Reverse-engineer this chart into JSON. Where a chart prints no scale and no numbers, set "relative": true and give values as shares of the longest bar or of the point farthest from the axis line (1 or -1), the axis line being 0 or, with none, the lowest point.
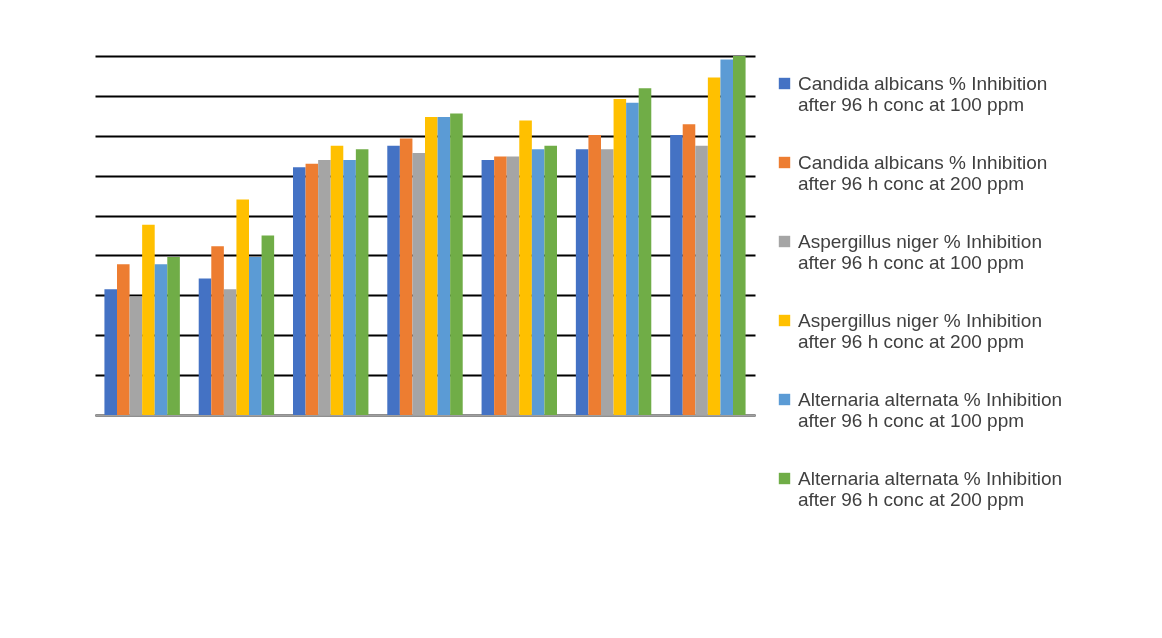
{
  "chart_data": {
    "type": "bar",
    "relative": true,
    "grid": "y",
    "legend": "right",
    "categories": [
      null,
      null,
      null,
      null,
      null,
      null,
      null
    ],
    "series": [
      {
        "name": "Candida albicans % Inhibition after 96 h conc at 100 ppm",
        "color": "#4472c4",
        "values": [
          0.35,
          0.38,
          0.69,
          0.75,
          0.71,
          0.74,
          0.78
        ]
      },
      {
        "name": "Candida albicans % Inhibition after 96 h conc at 200 ppm",
        "color": "#ed7d31",
        "values": [
          0.42,
          0.47,
          0.7,
          0.77,
          0.72,
          0.78,
          0.81
        ]
      },
      {
        "name": "Aspergillus niger % Inhibition after 96 h conc at 100 ppm",
        "color": "#a5a5a5",
        "values": [
          0.33,
          0.35,
          0.71,
          0.73,
          0.72,
          0.74,
          0.75
        ]
      },
      {
        "name": "Aspergillus niger % Inhibition after 96 h conc at 200 ppm",
        "color": "#ffc000",
        "values": [
          0.53,
          0.6,
          0.75,
          0.83,
          0.82,
          0.88,
          0.94
        ]
      },
      {
        "name": "Alternaria alternata % Inhibition after 96 h conc at 100 ppm",
        "color": "#5b9bd5",
        "values": [
          0.42,
          0.44,
          0.71,
          0.83,
          0.74,
          0.87,
          0.99
        ]
      },
      {
        "name": "Alternaria alternata % Inhibition after 96 h conc at 200 ppm",
        "color": "#70ad47",
        "values": [
          0.44,
          0.5,
          0.74,
          0.84,
          0.75,
          0.91,
          1
        ]
      }
    ]
  }
}
